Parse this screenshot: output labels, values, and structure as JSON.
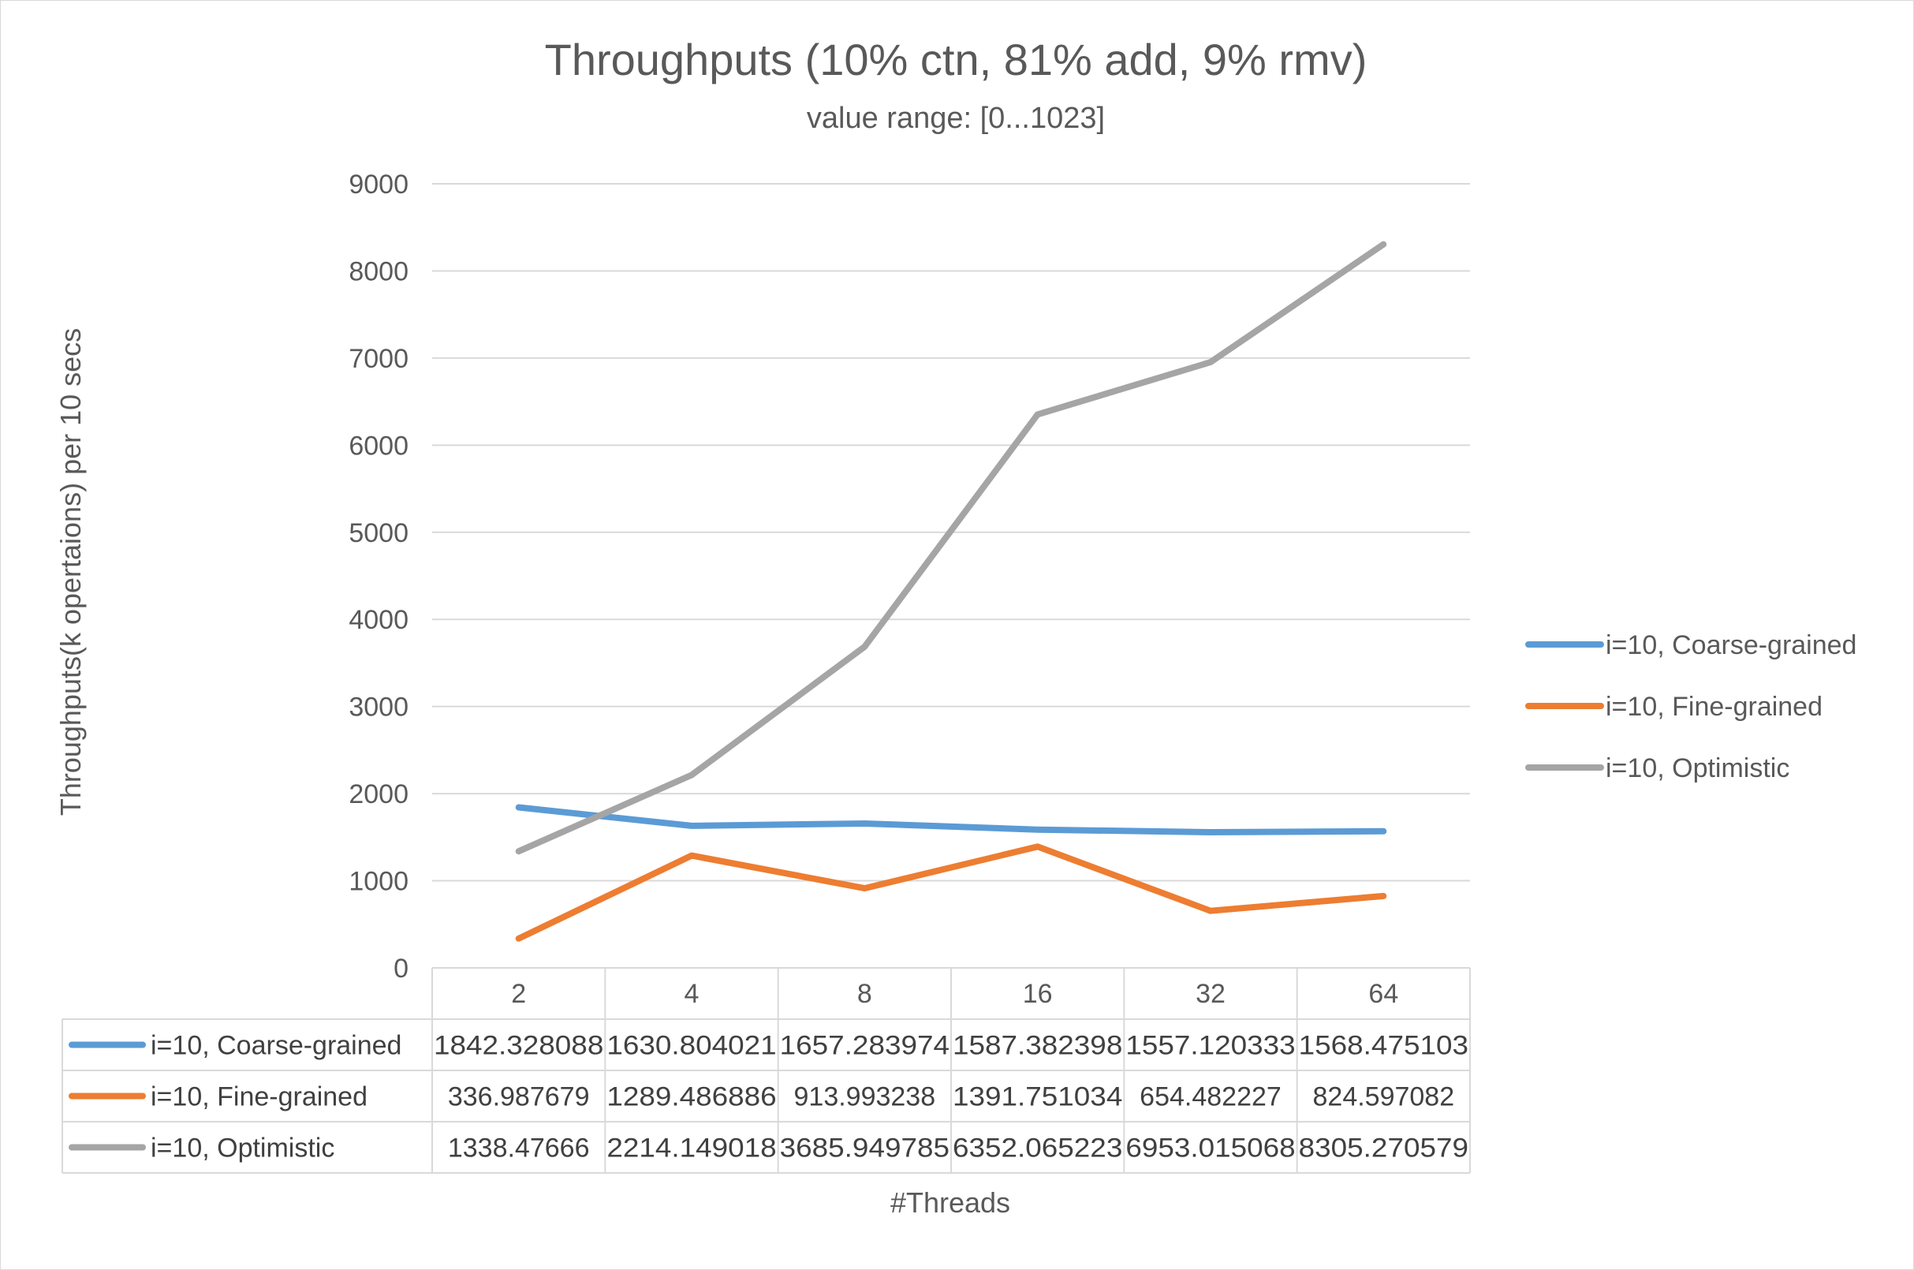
{
  "chart_data": {
    "type": "line",
    "title": "Throughputs (10% ctn, 81% add, 9% rmv)",
    "subtitle": "value range: [0...1023]",
    "xlabel": "#Threads",
    "ylabel": "Throughputs(k opertaions) per 10 secs",
    "categories": [
      "2",
      "4",
      "8",
      "16",
      "32",
      "64"
    ],
    "ylim": [
      0,
      9000
    ],
    "yticks": [
      0,
      1000,
      2000,
      3000,
      4000,
      5000,
      6000,
      7000,
      8000,
      9000
    ],
    "grid": true,
    "legend_position": "right",
    "series": [
      {
        "name": "i=10, Coarse-grained",
        "color": "#5b9bd5",
        "values": [
          1842.328088,
          1630.804021,
          1657.283974,
          1587.382398,
          1557.120333,
          1568.475103
        ],
        "labels": [
          "1842.328088",
          "1630.804021",
          "1657.283974",
          "1587.382398",
          "1557.120333",
          "1568.475103"
        ]
      },
      {
        "name": "i=10, Fine-grained",
        "color": "#ed7d31",
        "values": [
          336.987679,
          1289.486886,
          913.993238,
          1391.751034,
          654.482227,
          824.597082
        ],
        "labels": [
          "336.987679",
          "1289.486886",
          "913.993238",
          "1391.751034",
          "654.482227",
          "824.597082"
        ]
      },
      {
        "name": "i=10, Optimistic",
        "color": "#a5a5a5",
        "values": [
          1338.47666,
          2214.149018,
          3685.949785,
          6352.065223,
          6953.015068,
          8305.270579
        ],
        "labels": [
          "1338.47666",
          "2214.149018",
          "3685.949785",
          "6352.065223",
          "6953.015068",
          "8305.270579"
        ]
      }
    ]
  },
  "colors": {
    "gridline": "#d9d9d9",
    "text": "#595959"
  }
}
